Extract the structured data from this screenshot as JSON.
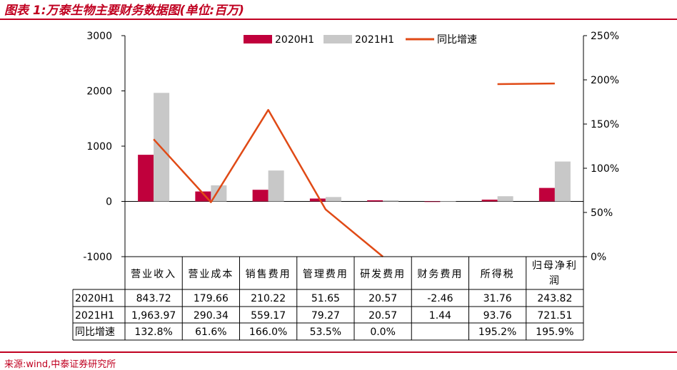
{
  "figure": {
    "title": "图表 1:万泰生物主要财务数据图(单位:百万)",
    "source": "来源:wind,中泰证券研究所"
  },
  "colors": {
    "h1_2020": "#c0003c",
    "h1_2021": "#c8c8c8",
    "growth": "#e04a16",
    "accent": "#c00020"
  },
  "chart_data": {
    "type": "bar",
    "categories": [
      "营业收入",
      "营业成本",
      "销售费用",
      "管理费用",
      "研发费用",
      "财务费用",
      "所得税",
      "归母净利润"
    ],
    "series": [
      {
        "name": "2020H1",
        "kind": "bar",
        "values": [
          843.72,
          179.66,
          210.22,
          51.65,
          20.57,
          -2.46,
          31.76,
          243.82
        ]
      },
      {
        "name": "2021H1",
        "kind": "bar",
        "values": [
          1963.97,
          290.34,
          559.17,
          79.27,
          20.57,
          1.44,
          93.76,
          721.51
        ]
      },
      {
        "name": "同比增速",
        "kind": "line",
        "axis": "right",
        "values": [
          132.8,
          61.6,
          166.0,
          53.5,
          0.0,
          null,
          195.2,
          195.9
        ]
      }
    ],
    "y_left": {
      "ylim": [
        -1000,
        3000
      ],
      "ticks": [
        "3000",
        "2000",
        "1000",
        "0",
        "-1000"
      ]
    },
    "y_right": {
      "ylim": [
        0,
        250
      ],
      "ticks": [
        "250%",
        "200%",
        "150%",
        "100%",
        "50%",
        "0%"
      ]
    },
    "legend_position": "top",
    "table": {
      "header": [
        "营业收入",
        "营业成本",
        "销售费用",
        "管理费用",
        "研发费用",
        "财务费用",
        "所得税",
        "归母净利\n润"
      ],
      "rows": [
        {
          "label": "2020H1",
          "cells": [
            "843.72",
            "179.66",
            "210.22",
            "51.65",
            "20.57",
            "-2.46",
            "31.76",
            "243.82"
          ]
        },
        {
          "label": "2021H1",
          "cells": [
            "1,963.97",
            "290.34",
            "559.17",
            "79.27",
            "20.57",
            "1.44",
            "93.76",
            "721.51"
          ]
        },
        {
          "label": "同比增速",
          "cells": [
            "132.8%",
            "61.6%",
            "166.0%",
            "53.5%",
            "0.0%",
            "",
            "195.2%",
            "195.9%"
          ]
        }
      ]
    }
  }
}
